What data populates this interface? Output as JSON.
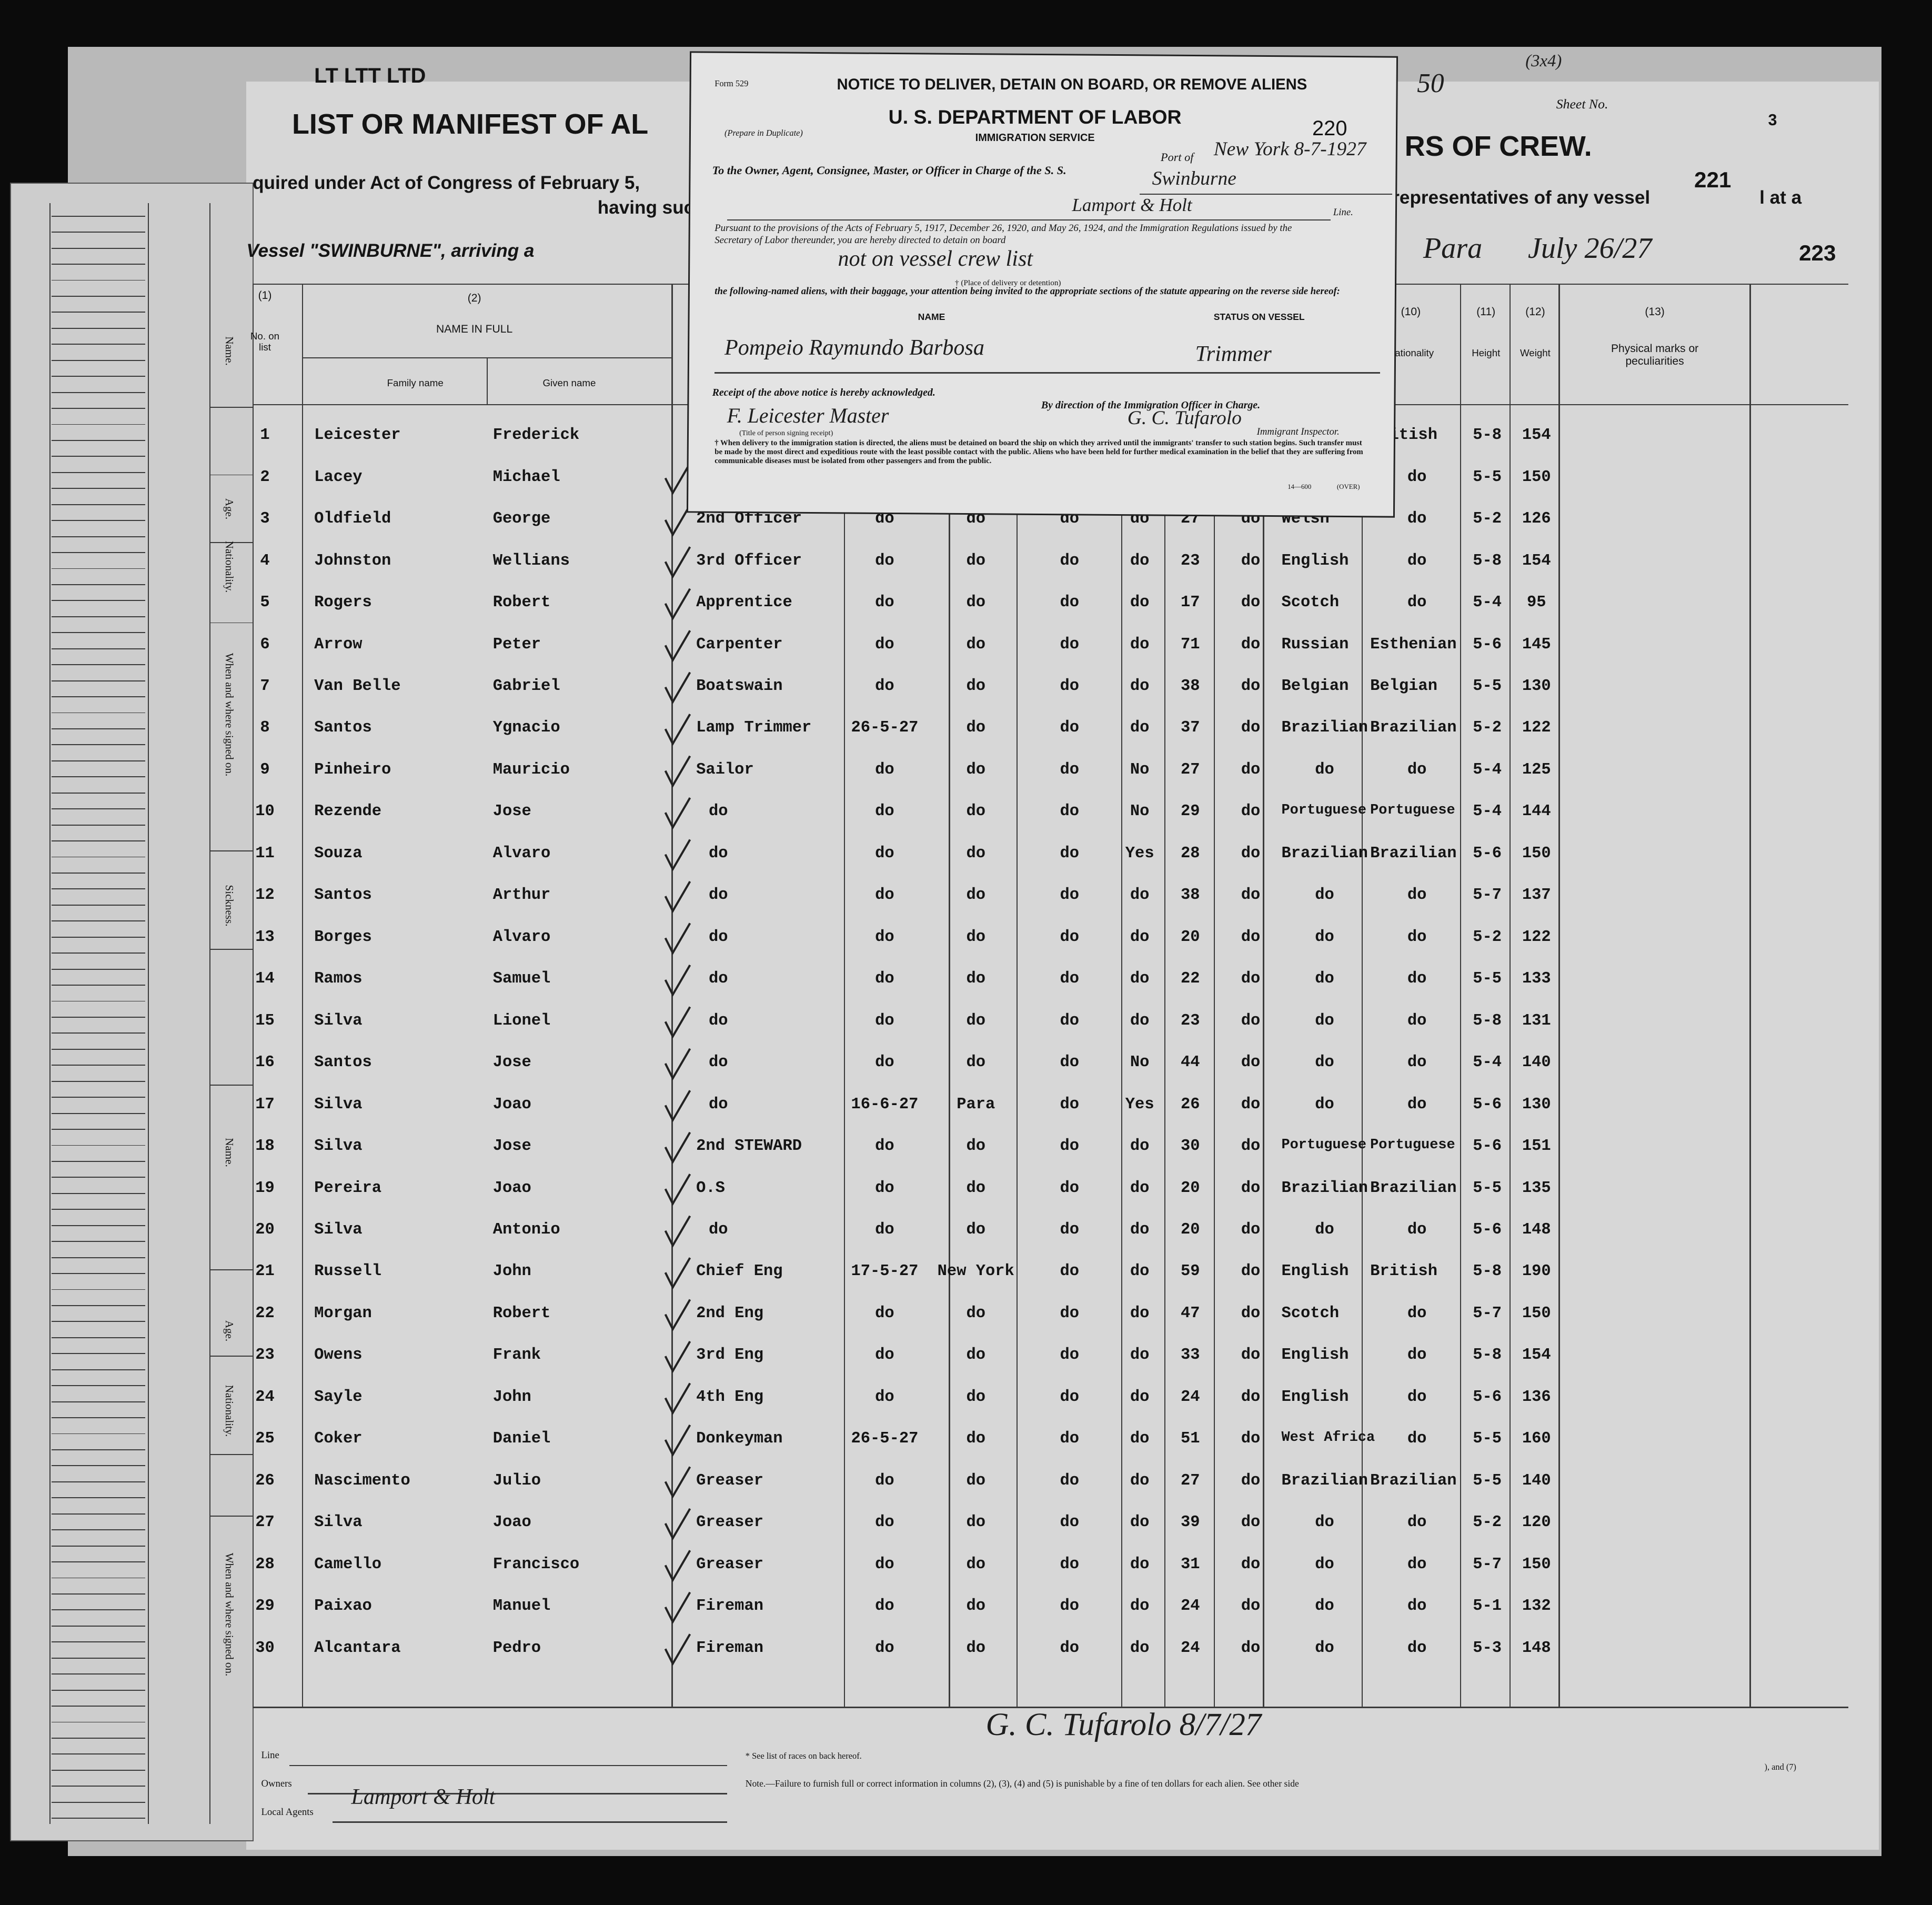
{
  "manifest": {
    "header": {
      "stamp": "LT LTT LTD",
      "title_left": "LIST OR MANIFEST OF AL",
      "title_right": "RS OF CREW.",
      "act_line": "quired under Act of Congress of February 5,",
      "having": "having suc",
      "reps": "representatives of any vessel",
      "at_a": "l at a",
      "vessel": "Vessel \"SWINBURNE\", arriving a",
      "port": "Para",
      "date": "July 26/27",
      "sheet_label": "Sheet No.",
      "sheet_no": "3",
      "number_221": "221",
      "number_223": "223",
      "corner": "(3x4)",
      "crossed": "50"
    },
    "columns": {
      "col1_num": "(1)",
      "col1_label": "No. on list",
      "col2_num": "(2)",
      "col2_label": "NAME IN FULL",
      "family": "Family name",
      "given": "Given name",
      "col10_num": "(10)",
      "col10_label": "Nationality",
      "col11_num": "(11)",
      "col11_label": "Height",
      "col12_num": "(12)",
      "col12_label": "Weight",
      "col13_num": "(13)",
      "col13_label": "Physical marks or peculiarities"
    },
    "rows": [
      [
        "1",
        "Leicester",
        "Frederick",
        "",
        "",
        "",
        "",
        "",
        "",
        "",
        "",
        "British",
        "5-8",
        "154"
      ],
      [
        "2",
        "Lacey",
        "Michael",
        "",
        "",
        "",
        "",
        "",
        "",
        "",
        "",
        "do",
        "5-5",
        "150"
      ],
      [
        "3",
        "Oldfield",
        "George",
        "2nd Officer",
        "do",
        "do",
        "do",
        "do",
        "27",
        "do",
        "Welsh",
        "do",
        "5-2",
        "126"
      ],
      [
        "4",
        "Johnston",
        "Wellians",
        "3rd Officer",
        "do",
        "do",
        "do",
        "do",
        "23",
        "do",
        "English",
        "do",
        "5-8",
        "154"
      ],
      [
        "5",
        "Rogers",
        "Robert",
        "Apprentice",
        "do",
        "do",
        "do",
        "do",
        "17",
        "do",
        "Scotch",
        "do",
        "5-4",
        "95"
      ],
      [
        "6",
        "Arrow",
        "Peter",
        "Carpenter",
        "do",
        "do",
        "do",
        "do",
        "71",
        "do",
        "Russian",
        "Esthenian",
        "5-6",
        "145"
      ],
      [
        "7",
        "Van Belle",
        "Gabriel",
        "Boatswain",
        "do",
        "do",
        "do",
        "do",
        "38",
        "do",
        "Belgian",
        "Belgian",
        "5-5",
        "130"
      ],
      [
        "8",
        "Santos",
        "Ygnacio",
        "Lamp Trimmer",
        "26-5-27",
        "do",
        "do",
        "do",
        "37",
        "do",
        "Brazilian",
        "Brazilian",
        "5-2",
        "122"
      ],
      [
        "9",
        "Pinheiro",
        "Mauricio",
        "Sailor",
        "do",
        "do",
        "do",
        "No",
        "27",
        "do",
        "do",
        "do",
        "5-4",
        "125"
      ],
      [
        "10",
        "Rezende",
        "Jose",
        "do",
        "do",
        "do",
        "do",
        "No",
        "29",
        "do",
        "Portuguese",
        "Portuguese",
        "5-4",
        "144"
      ],
      [
        "11",
        "Souza",
        "Alvaro",
        "do",
        "do",
        "do",
        "do",
        "Yes",
        "28",
        "do",
        "Brazilian",
        "Brazilian",
        "5-6",
        "150"
      ],
      [
        "12",
        "Santos",
        "Arthur",
        "do",
        "do",
        "do",
        "do",
        "do",
        "38",
        "do",
        "do",
        "do",
        "5-7",
        "137"
      ],
      [
        "13",
        "Borges",
        "Alvaro",
        "do",
        "do",
        "do",
        "do",
        "do",
        "20",
        "do",
        "do",
        "do",
        "5-2",
        "122"
      ],
      [
        "14",
        "Ramos",
        "Samuel",
        "do",
        "do",
        "do",
        "do",
        "do",
        "22",
        "do",
        "do",
        "do",
        "5-5",
        "133"
      ],
      [
        "15",
        "Silva",
        "Lionel",
        "do",
        "do",
        "do",
        "do",
        "do",
        "23",
        "do",
        "do",
        "do",
        "5-8",
        "131"
      ],
      [
        "16",
        "Santos",
        "Jose",
        "do",
        "do",
        "do",
        "do",
        "No",
        "44",
        "do",
        "do",
        "do",
        "5-4",
        "140"
      ],
      [
        "17",
        "Silva",
        "Joao",
        "do",
        "16-6-27",
        "Para",
        "do",
        "Yes",
        "26",
        "do",
        "do",
        "do",
        "5-6",
        "130"
      ],
      [
        "18",
        "Silva",
        "Jose",
        "2nd STEWARD",
        "do",
        "do",
        "do",
        "do",
        "30",
        "do",
        "Portuguese",
        "Portuguese",
        "5-6",
        "151"
      ],
      [
        "19",
        "Pereira",
        "Joao",
        "O.S",
        "do",
        "do",
        "do",
        "do",
        "20",
        "do",
        "Brazilian",
        "Brazilian",
        "5-5",
        "135"
      ],
      [
        "20",
        "Silva",
        "Antonio",
        "do",
        "do",
        "do",
        "do",
        "do",
        "20",
        "do",
        "do",
        "do",
        "5-6",
        "148"
      ],
      [
        "21",
        "Russell",
        "John",
        "Chief Eng",
        "17-5-27",
        "New York",
        "do",
        "do",
        "59",
        "do",
        "English",
        "British",
        "5-8",
        "190"
      ],
      [
        "22",
        "Morgan",
        "Robert",
        "2nd Eng",
        "do",
        "do",
        "do",
        "do",
        "47",
        "do",
        "Scotch",
        "do",
        "5-7",
        "150"
      ],
      [
        "23",
        "Owens",
        "Frank",
        "3rd Eng",
        "do",
        "do",
        "do",
        "do",
        "33",
        "do",
        "English",
        "do",
        "5-8",
        "154"
      ],
      [
        "24",
        "Sayle",
        "John",
        "4th Eng",
        "do",
        "do",
        "do",
        "do",
        "24",
        "do",
        "English",
        "do",
        "5-6",
        "136"
      ],
      [
        "25",
        "Coker",
        "Daniel",
        "Donkeyman",
        "26-5-27",
        "do",
        "do",
        "do",
        "51",
        "do",
        "West Africa",
        "do",
        "5-5",
        "160"
      ],
      [
        "26",
        "Nascimento",
        "Julio",
        "Greaser",
        "do",
        "do",
        "do",
        "do",
        "27",
        "do",
        "Brazilian",
        "Brazilian",
        "5-5",
        "140"
      ],
      [
        "27",
        "Silva",
        "Joao",
        "Greaser",
        "do",
        "do",
        "do",
        "do",
        "39",
        "do",
        "do",
        "do",
        "5-2",
        "120"
      ],
      [
        "28",
        "Camello",
        "Francisco",
        "Greaser",
        "do",
        "do",
        "do",
        "do",
        "31",
        "do",
        "do",
        "do",
        "5-7",
        "150"
      ],
      [
        "29",
        "Paixao",
        "Manuel",
        "Fireman",
        "do",
        "do",
        "do",
        "do",
        "24",
        "do",
        "do",
        "do",
        "5-1",
        "132"
      ],
      [
        "30",
        "Alcantara",
        "Pedro",
        "Fireman",
        "do",
        "do",
        "do",
        "do",
        "24",
        "do",
        "do",
        "do",
        "5-3",
        "148"
      ]
    ]
  },
  "side_strip": {
    "labels": [
      "Name.",
      "Age.",
      "Nationality.",
      "When and where signed on.",
      "Sickness.",
      "Name.",
      "Age.",
      "Nationality.",
      "When and where signed on."
    ]
  },
  "notice": {
    "form": "Form 529",
    "title": "NOTICE TO DELIVER, DETAIN ON BOARD, OR REMOVE ALIENS",
    "department": "U. S. DEPARTMENT OF LABOR",
    "duplicate": "(Prepare in Duplicate)",
    "number": "220",
    "service": "IMMIGRATION SERVICE",
    "port_label": "Port of",
    "port_value": "New York 8-7-1927",
    "to_line": "To the Owner, Agent, Consignee, Master, or Officer in Charge of the S. S.",
    "ship": "Swinburne",
    "line_value": "Lamport & Holt",
    "line_label": "Line.",
    "pursuant": "Pursuant to the provisions of the Acts of February 5, 1917, December 26, 1920, and May 26, 1924, and the Immigration Regulations issued by the Secretary of Labor thereunder, you are hereby directed to detain on board",
    "place": "not on vessel crew list",
    "place_caption": "† (Place of delivery or detention)",
    "following": "the following-named aliens, with their baggage, your attention being invited to the appropriate sections of the statute appearing on the reverse side hereof:",
    "name_label": "NAME",
    "status_label": "STATUS ON VESSEL",
    "alien_name": "Pompeio Raymundo Barbosa",
    "alien_status": "Trimmer",
    "receipt": "Receipt of the above notice is hereby acknowledged.",
    "direction": "By direction of the Immigration Officer in Charge.",
    "master_signature": "F. Leicester Master",
    "inspector_signature": "G. C. Tufarolo",
    "title_caption": "(Title of person signing receipt)",
    "inspector_label": "Immigrant Inspector.",
    "footnote": "† When delivery to the immigration station is directed, the aliens must be detained on board the ship on which they arrived until the immigrants' transfer to such station begins. Such transfer must be made by the most direct and expeditious route with the least possible contact with the public. Aliens who have been held for further medical examination in the belief that they are suffering from communicable diseases must be isolated from other passengers and from the public.",
    "form_code": "14—600",
    "over": "(OVER)"
  },
  "footer": {
    "line_label": "Line",
    "owners_label": "Owners",
    "agents_label": "Local Agents",
    "agents_value": "Lamport & Holt",
    "signature": "G. C. Tufarolo 8/7/27",
    "races_note": "* See list of races on back hereof.",
    "penalty_note": "Note.—Failure to furnish full or correct information in columns (2), (3), (4) and (5) is punishable by a fine of ten dollars for each alien. See other side",
    "right_fragment": "), and (7)"
  }
}
